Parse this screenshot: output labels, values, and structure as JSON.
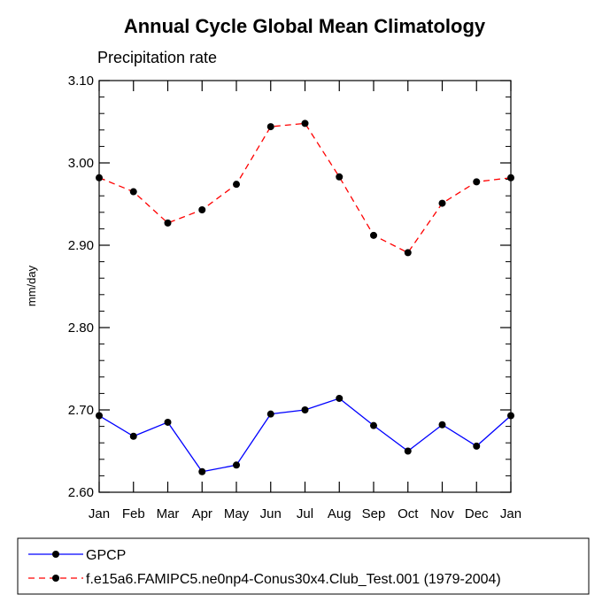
{
  "chart_data": {
    "type": "line",
    "title": "Annual Cycle Global Mean Climatology",
    "subtitle": "Precipitation rate",
    "xlabel": "",
    "ylabel": "mm/day",
    "categories": [
      "Jan",
      "Feb",
      "Mar",
      "Apr",
      "May",
      "Jun",
      "Jul",
      "Aug",
      "Sep",
      "Oct",
      "Nov",
      "Dec",
      "Jan"
    ],
    "ylim": [
      2.6,
      3.1
    ],
    "yticks": [
      "2.60",
      "2.70",
      "2.80",
      "2.90",
      "3.00",
      "3.10"
    ],
    "yticks_values": [
      2.6,
      2.7,
      2.8,
      2.9,
      3.0,
      3.1
    ],
    "grid": false,
    "legend_position": "bottom",
    "series": [
      {
        "name": "GPCP",
        "color": "#0000ff",
        "style": "solid",
        "values": [
          2.693,
          2.668,
          2.685,
          2.625,
          2.633,
          2.695,
          2.7,
          2.714,
          2.681,
          2.65,
          2.682,
          2.656,
          2.693
        ]
      },
      {
        "name": "f.e15a6.FAMIPC5.ne0np4-Conus30x4.Club_Test.001 (1979-2004)",
        "color": "#ff0000",
        "style": "dashed",
        "values": [
          2.982,
          2.965,
          2.927,
          2.943,
          2.974,
          3.044,
          3.048,
          2.983,
          2.912,
          2.891,
          2.951,
          2.977,
          2.982
        ]
      }
    ]
  }
}
